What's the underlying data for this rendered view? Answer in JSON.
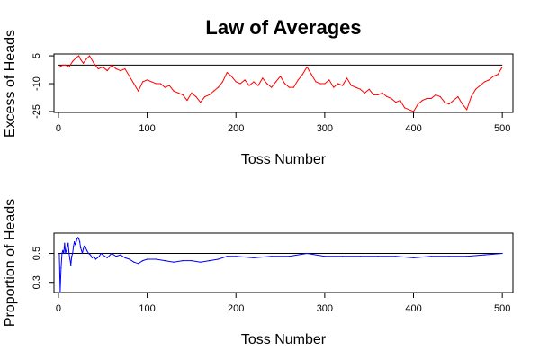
{
  "figure_title": "Law of Averages",
  "chart_data": [
    {
      "type": "line",
      "xlabel": "Toss Number",
      "ylabel": "Excess of Heads",
      "xlim": [
        -5,
        512
      ],
      "ylim": [
        -25.5,
        6
      ],
      "xticks": [
        0,
        100,
        200,
        300,
        400,
        500
      ],
      "yticks": [
        5,
        -10,
        -25
      ],
      "reference_line": 0,
      "series": [
        {
          "color": "#ff0000",
          "x": [
            1,
            5,
            8,
            12,
            16,
            20,
            23,
            25,
            28,
            31,
            35,
            40,
            45,
            50,
            55,
            60,
            65,
            70,
            75,
            80,
            85,
            90,
            95,
            100,
            105,
            110,
            115,
            120,
            125,
            130,
            135,
            140,
            145,
            150,
            155,
            160,
            165,
            170,
            175,
            180,
            185,
            190,
            195,
            200,
            205,
            210,
            215,
            220,
            225,
            230,
            235,
            240,
            245,
            250,
            255,
            260,
            265,
            270,
            275,
            280,
            285,
            290,
            295,
            300,
            305,
            310,
            315,
            320,
            325,
            330,
            335,
            340,
            345,
            350,
            355,
            360,
            365,
            370,
            375,
            380,
            385,
            390,
            395,
            400,
            405,
            410,
            415,
            420,
            425,
            430,
            435,
            440,
            445,
            450,
            455,
            460,
            465,
            470,
            475,
            480,
            485,
            490,
            495,
            500
          ],
          "y": [
            -1,
            0,
            0,
            -1,
            2,
            4,
            5,
            3,
            1,
            3,
            5,
            1,
            -2,
            -1,
            -3,
            0,
            -2,
            -3,
            -2,
            -6,
            -10,
            -14,
            -9,
            -8,
            -9,
            -10,
            -10,
            -12,
            -11,
            -14,
            -15,
            -16,
            -19,
            -15,
            -17,
            -20,
            -17,
            -16,
            -14,
            -12,
            -9,
            -4,
            -6,
            -9,
            -10,
            -8,
            -11,
            -9,
            -11,
            -7,
            -10,
            -12,
            -9,
            -6,
            -10,
            -12,
            -12,
            -8,
            -5,
            -1,
            -5,
            -9,
            -10,
            -10,
            -8,
            -12,
            -10,
            -11,
            -7,
            -11,
            -12,
            -13,
            -15,
            -13,
            -16,
            -16,
            -15,
            -17,
            -18,
            -20,
            -19,
            -23,
            -24,
            -25,
            -21,
            -19,
            -18,
            -18,
            -16,
            -17,
            -20,
            -21,
            -19,
            -17,
            -21,
            -24,
            -17,
            -13,
            -11,
            -9,
            -8,
            -6,
            -5,
            -1
          ]
        }
      ]
    },
    {
      "type": "line",
      "xlabel": "Toss Number",
      "ylabel": "Proportion of Heads",
      "xlim": [
        -5,
        512
      ],
      "ylim": [
        0.23,
        0.64
      ],
      "xticks": [
        0,
        100,
        200,
        300,
        400,
        500
      ],
      "yticks": [
        0.5,
        0.3
      ],
      "reference_line": 0.5,
      "series": [
        {
          "color": "#0000ff",
          "x": [
            1,
            2,
            3,
            4,
            5,
            6,
            7,
            8,
            9,
            10,
            11,
            12,
            13,
            14,
            15,
            16,
            17,
            18,
            19,
            20,
            21,
            22,
            23,
            24,
            25,
            26,
            27,
            28,
            29,
            30,
            32,
            34,
            36,
            38,
            40,
            42,
            44,
            46,
            48,
            50,
            55,
            60,
            65,
            70,
            75,
            80,
            85,
            90,
            95,
            100,
            110,
            120,
            130,
            140,
            150,
            160,
            170,
            180,
            190,
            200,
            220,
            240,
            260,
            280,
            300,
            320,
            340,
            360,
            380,
            400,
            420,
            440,
            460,
            480,
            500
          ],
          "y": [
            0.5,
            0.24,
            0.4,
            0.5,
            0.52,
            0.5,
            0.57,
            0.5,
            0.52,
            0.55,
            0.57,
            0.5,
            0.46,
            0.42,
            0.48,
            0.5,
            0.55,
            0.58,
            0.56,
            0.58,
            0.6,
            0.61,
            0.6,
            0.58,
            0.54,
            0.52,
            0.5,
            0.53,
            0.55,
            0.55,
            0.52,
            0.5,
            0.49,
            0.47,
            0.48,
            0.46,
            0.47,
            0.48,
            0.5,
            0.49,
            0.47,
            0.5,
            0.48,
            0.49,
            0.47,
            0.46,
            0.44,
            0.43,
            0.45,
            0.46,
            0.46,
            0.45,
            0.44,
            0.45,
            0.45,
            0.44,
            0.45,
            0.46,
            0.48,
            0.48,
            0.47,
            0.48,
            0.48,
            0.5,
            0.48,
            0.48,
            0.48,
            0.48,
            0.48,
            0.47,
            0.48,
            0.48,
            0.48,
            0.49,
            0.5
          ]
        }
      ]
    }
  ]
}
